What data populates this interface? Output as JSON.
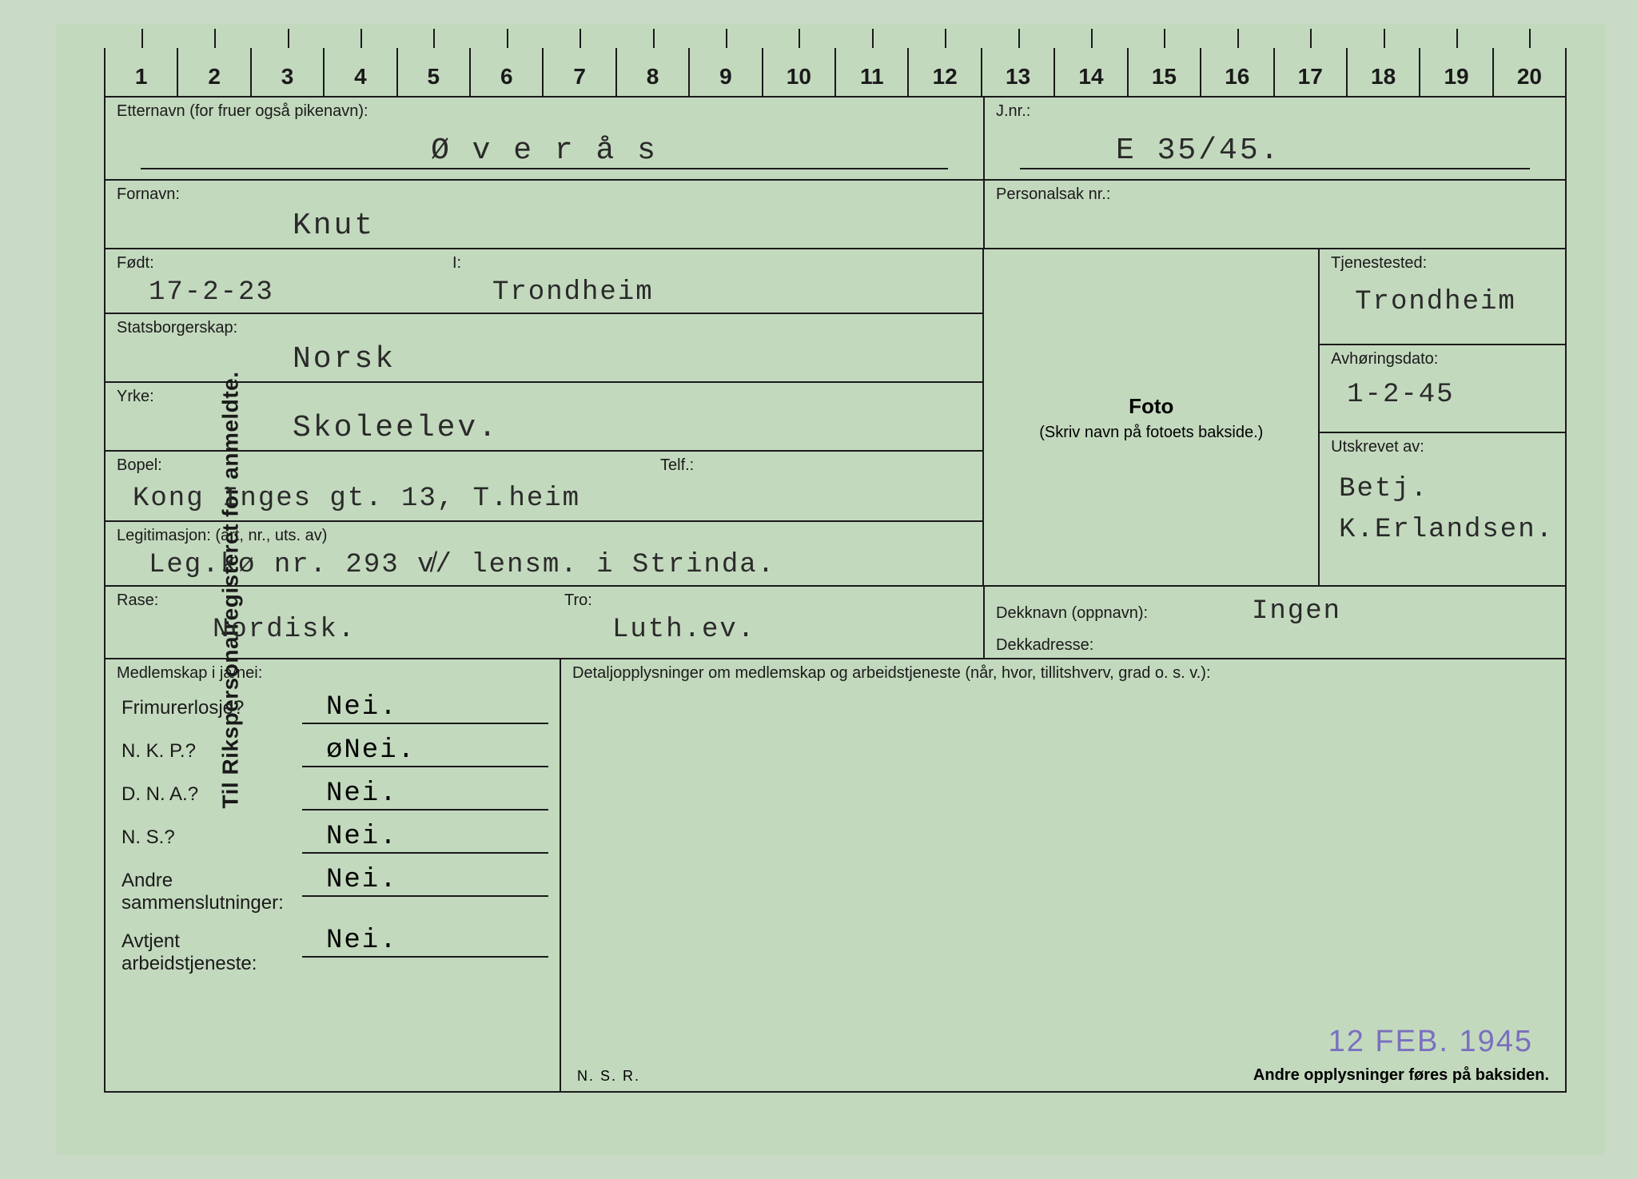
{
  "vertical_label": "Til Rikspersonalregisteret for anmeldte.",
  "ruler": [
    "1",
    "2",
    "3",
    "4",
    "5",
    "6",
    "7",
    "8",
    "9",
    "10",
    "11",
    "12",
    "13",
    "14",
    "15",
    "16",
    "17",
    "18",
    "19",
    "20"
  ],
  "colors": {
    "background": "#c3d9be",
    "line": "#1a1a1a",
    "typed_text": "#2a2a2a",
    "stamp": "#7a6fbf"
  },
  "fields": {
    "etternavn": {
      "label": "Etternavn (for fruer også pikenavn):",
      "value": "Ø v e r å s"
    },
    "jnr": {
      "label": "J.nr.:",
      "value": "E 35/45."
    },
    "fornavn": {
      "label": "Fornavn:",
      "value": "Knut"
    },
    "personalsak": {
      "label": "Personalsak nr.:",
      "value": ""
    },
    "fodt": {
      "label": "Født:",
      "value": "17-2-23"
    },
    "fodt_i": {
      "label": "I:",
      "value": "Trondheim"
    },
    "tjenestested": {
      "label": "Tjenestested:",
      "value": "Trondheim"
    },
    "statsborgerskap": {
      "label": "Statsborgerskap:",
      "value": "Norsk"
    },
    "avhoringsdato": {
      "label": "Avhøringsdato:",
      "value": "1-2-45"
    },
    "yrke": {
      "label": "Yrke:",
      "value": "Skoleelev."
    },
    "bopel": {
      "label": "Bopel:",
      "value": "Kong Inges gt. 13, T.heim"
    },
    "telf": {
      "label": "Telf.:",
      "value": ""
    },
    "utskrevet": {
      "label": "Utskrevet av:",
      "value": "Betj.\nK.Erlandsen."
    },
    "legitimasjon": {
      "label": "Legitimasjon: (art, nr., uts. av)",
      "value": "Leg.kø nr. 293 v̸/ lensm. i Strinda."
    },
    "rase": {
      "label": "Rase:",
      "value": "Nordisk."
    },
    "tro": {
      "label": "Tro:",
      "value": "Luth.ev."
    },
    "dekknavn": {
      "label": "Dekknavn (oppnavn):",
      "value": "Ingen"
    },
    "dekkadresse": {
      "label": "Dekkadresse:",
      "value": ""
    },
    "foto": {
      "title": "Foto",
      "sub": "(Skriv navn på fotoets bakside.)"
    }
  },
  "membership": {
    "header": "Medlemskap i ja/nei:",
    "items": [
      {
        "label": "Frimurerlosje?",
        "value": "Nei."
      },
      {
        "label": "N. K. P.?",
        "value": "øNei."
      },
      {
        "label": "D. N. A.?",
        "value": "Nei."
      },
      {
        "label": "N. S.?",
        "value": "Nei."
      },
      {
        "label": "Andre\nsammenslutninger:",
        "value": "Nei."
      },
      {
        "label": "Avtjent\narbeidstjeneste:",
        "value": "Nei."
      }
    ]
  },
  "details_header": "Detaljopplysninger om medlemskap og arbeidstjeneste (når, hvor, tillitshverv, grad o. s. v.):",
  "stamp": "12 FEB. 1945",
  "footer_left": "N. S. R.",
  "footer_right": "Andre opplysninger føres på baksiden."
}
